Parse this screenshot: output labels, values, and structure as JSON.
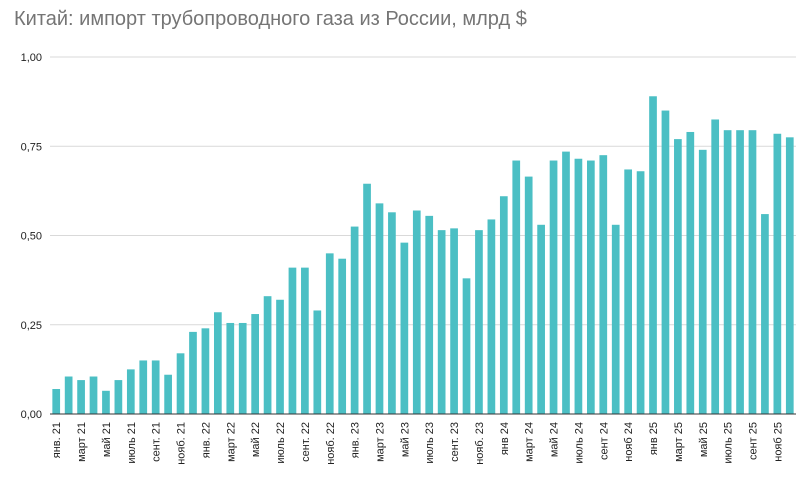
{
  "chart_data": {
    "type": "bar",
    "title": "Китай: импорт трубопроводного газа из России, млрд $",
    "xlabel": "",
    "ylabel": "",
    "ylim": [
      0,
      1.0
    ],
    "yticks": [
      "0,00",
      "0,25",
      "0,50",
      "0,75",
      "1,00"
    ],
    "grid": true,
    "legend": "none",
    "colors": {
      "bar": "#4bbfc4",
      "grid": "#d9d9d9",
      "axis": "#333333"
    },
    "categories": [
      "янв. 21",
      "фев. 21",
      "март 21",
      "апр. 21",
      "май 21",
      "июнь 21",
      "июль 21",
      "авг. 21",
      "сент. 21",
      "окт. 21",
      "нояб. 21",
      "дек. 21",
      "янв. 22",
      "фев. 22",
      "март 22",
      "апр. 22",
      "май 22",
      "июнь 22",
      "июль 22",
      "авг. 22",
      "сент. 22",
      "окт. 22",
      "нояб. 22",
      "дек. 22",
      "янв. 23",
      "фев. 23",
      "март 23",
      "апр. 23",
      "май 23",
      "июнь 23",
      "июль 23",
      "авг. 23",
      "сент. 23",
      "окт. 23",
      "нояб. 23",
      "дек. 23",
      "янв 24",
      "фев 24",
      "март 24",
      "апр 24",
      "май 24",
      "июнь 24",
      "июль 24",
      "авг 24",
      "сент 24",
      "окт 24",
      "нояб 24",
      "дек 24",
      "янв 25",
      "фев 25",
      "март 25",
      "апр 25",
      "май 25",
      "июнь 25",
      "июль 25",
      "авг 25",
      "сент 25",
      "окт 25",
      "нояб 25",
      "дек 25"
    ],
    "tick_labels": [
      "янв. 21",
      "март 21",
      "май 21",
      "июль 21",
      "сент. 21",
      "нояб. 21",
      "янв. 22",
      "март 22",
      "май 22",
      "июль 22",
      "сент. 22",
      "нояб. 22",
      "янв. 23",
      "март 23",
      "май 23",
      "июль 23",
      "сент. 23",
      "нояб. 23",
      "янв 24",
      "март 24",
      "май 24",
      "июль 24",
      "сент 24",
      "нояб 24",
      "янв 25",
      "март 25",
      "май 25",
      "июль 25",
      "сент 25",
      "нояб 25"
    ],
    "values": [
      0.07,
      0.105,
      0.095,
      0.105,
      0.065,
      0.095,
      0.125,
      0.15,
      0.15,
      0.11,
      0.17,
      0.23,
      0.24,
      0.285,
      0.255,
      0.255,
      0.28,
      0.33,
      0.32,
      0.41,
      0.41,
      0.29,
      0.45,
      0.435,
      0.525,
      0.645,
      0.59,
      0.565,
      0.48,
      0.57,
      0.555,
      0.515,
      0.52,
      0.38,
      0.515,
      0.545,
      0.61,
      0.71,
      0.665,
      0.53,
      0.71,
      0.735,
      0.715,
      0.71,
      0.725,
      0.53,
      0.685,
      0.68,
      0.89,
      0.85,
      0.77,
      0.79,
      0.74,
      0.825,
      0.795,
      0.795,
      0.795,
      0.56,
      0.785,
      0.775
    ]
  }
}
